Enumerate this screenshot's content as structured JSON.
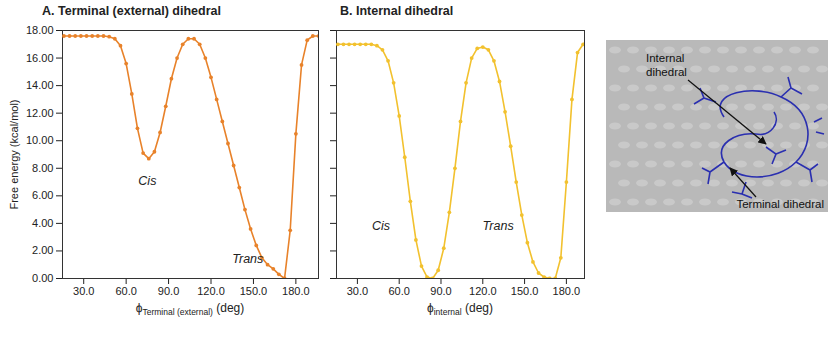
{
  "chart_data": [
    {
      "type": "line",
      "title": "A. Terminal (external) dihedral",
      "xlabel": {
        "symbol": "ϕ",
        "subscript": "Terminal (external)",
        "unit": "(deg)"
      },
      "ylabel": "Free energy (kcal/mol)",
      "xlim": [
        15,
        196
      ],
      "ylim": [
        0,
        18
      ],
      "xticks": [
        {
          "value": 30,
          "label": "30.0"
        },
        {
          "value": 60,
          "label": "60.0"
        },
        {
          "value": 90,
          "label": "90.0"
        },
        {
          "value": 120,
          "label": "120.0"
        },
        {
          "value": 150,
          "label": "150.0"
        },
        {
          "value": 180,
          "label": "180.0"
        }
      ],
      "yticks": [
        {
          "value": 0,
          "label": "0.00"
        },
        {
          "value": 2,
          "label": "2.00"
        },
        {
          "value": 4,
          "label": "4.00"
        },
        {
          "value": 6,
          "label": "6.00"
        },
        {
          "value": 8,
          "label": "8.00"
        },
        {
          "value": 10,
          "label": "10.00"
        },
        {
          "value": 12,
          "label": "12.00"
        },
        {
          "value": 14,
          "label": "14.00"
        },
        {
          "value": 16,
          "label": "16.00"
        },
        {
          "value": 18,
          "label": "18.00"
        }
      ],
      "x": [
        16,
        20,
        24,
        28,
        32,
        36,
        40,
        44,
        48,
        52,
        56,
        60,
        64,
        68,
        72,
        76,
        80,
        84,
        88,
        92,
        96,
        100,
        104,
        108,
        112,
        116,
        120,
        124,
        128,
        132,
        136,
        140,
        144,
        148,
        152,
        156,
        160,
        164,
        168,
        172,
        176,
        180,
        184,
        188,
        192,
        196
      ],
      "values": [
        17.6,
        17.6,
        17.6,
        17.6,
        17.6,
        17.6,
        17.6,
        17.6,
        17.55,
        17.4,
        16.9,
        15.6,
        13.4,
        10.9,
        9.1,
        8.7,
        9.2,
        10.6,
        12.5,
        14.5,
        16.0,
        17.0,
        17.4,
        17.4,
        17.0,
        16.0,
        14.6,
        13.0,
        11.4,
        9.8,
        8.2,
        6.6,
        5.0,
        3.6,
        2.4,
        1.5,
        1.0,
        0.7,
        0.3,
        0.0,
        3.5,
        10.5,
        15.5,
        17.3,
        17.6,
        17.6
      ],
      "color": "#e8822a",
      "marker": "circle",
      "line_style": "solid",
      "annotations": [
        {
          "text": "Cis",
          "x": 75,
          "y": 7.1
        },
        {
          "text": "Trans",
          "x": 146,
          "y": 1.4
        }
      ]
    },
    {
      "type": "line",
      "title": "B. Internal dihedral",
      "xlabel": {
        "symbol": "ϕ",
        "subscript": "internal",
        "unit": "(deg)"
      },
      "xlim": [
        15,
        193
      ],
      "ylim": [
        0,
        18
      ],
      "xticks": [
        {
          "value": 30,
          "label": "30.0"
        },
        {
          "value": 60,
          "label": "60.0"
        },
        {
          "value": 90,
          "label": "90.0"
        },
        {
          "value": 120,
          "label": "120.0"
        },
        {
          "value": 150,
          "label": "150.0"
        },
        {
          "value": 180,
          "label": "180.0"
        }
      ],
      "yticks": [
        0,
        2,
        4,
        6,
        8,
        10,
        12,
        14,
        16,
        18
      ],
      "tick_labels": "x",
      "x": [
        16,
        20,
        24,
        28,
        32,
        36,
        40,
        44,
        48,
        52,
        56,
        60,
        64,
        68,
        72,
        76,
        80,
        84,
        88,
        92,
        96,
        100,
        104,
        108,
        112,
        116,
        120,
        124,
        128,
        132,
        136,
        140,
        144,
        148,
        152,
        156,
        160,
        164,
        168,
        172,
        176,
        180,
        184,
        188,
        192
      ],
      "values": [
        17.0,
        17.0,
        17.0,
        17.0,
        17.0,
        17.0,
        17.0,
        16.9,
        16.6,
        15.8,
        14.2,
        11.8,
        8.8,
        5.6,
        2.8,
        0.9,
        0.1,
        0.0,
        0.6,
        2.2,
        4.8,
        8.0,
        11.4,
        14.2,
        16.0,
        16.7,
        16.8,
        16.6,
        15.8,
        14.3,
        12.1,
        9.6,
        7.0,
        4.6,
        2.6,
        1.2,
        0.4,
        0.1,
        0.0,
        0.0,
        1.5,
        7.0,
        13.0,
        16.4,
        17.0
      ],
      "color": "#f2c12e",
      "marker": "circle",
      "line_style": "solid",
      "annotations": [
        {
          "text": "Cis",
          "x": 47,
          "y": 3.8
        },
        {
          "text": "Trans",
          "x": 131,
          "y": 3.8
        }
      ]
    }
  ],
  "image": {
    "labels": [
      "Internal dihedral",
      "Terminal dihedral"
    ]
  }
}
